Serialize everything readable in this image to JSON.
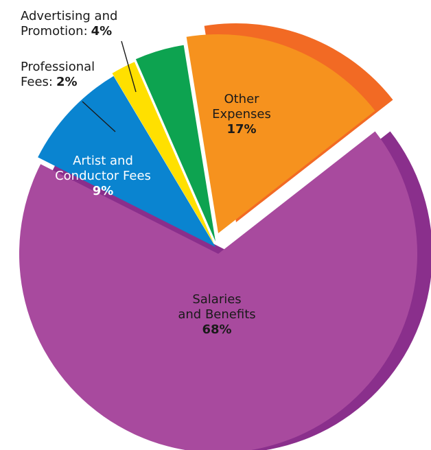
{
  "chart_data": {
    "type": "pie",
    "style": "3d-exploded",
    "slices": [
      {
        "key": "salaries",
        "label_lines": [
          "Salaries",
          "and Benefits"
        ],
        "value_label": "68%",
        "value": 68,
        "color": "#A84A9E",
        "side_color": "#8A2F8C",
        "label_color": "#1a1a1a"
      },
      {
        "key": "artist",
        "label_lines": [
          "Artist and",
          "Conductor Fees"
        ],
        "value_label": "9%",
        "value": 9,
        "color": "#0A84D0",
        "label_color": "#ffffff"
      },
      {
        "key": "professional",
        "label_lines": [
          "Professional",
          "Fees:"
        ],
        "value_label": "2%",
        "value": 2,
        "color": "#FFE000",
        "label_color": "#1a1a1a"
      },
      {
        "key": "advertising",
        "label_lines": [
          "Advertising and",
          "Promotion:"
        ],
        "value_label": "4%",
        "value": 4,
        "color": "#0DA350",
        "label_color": "#1a1a1a"
      },
      {
        "key": "other",
        "label_lines": [
          "Other",
          "Expenses"
        ],
        "value_label": "17%",
        "value": 17,
        "color": "#F6921E",
        "side_color": "#F26A24",
        "label_color": "#1a1a1a"
      }
    ]
  }
}
